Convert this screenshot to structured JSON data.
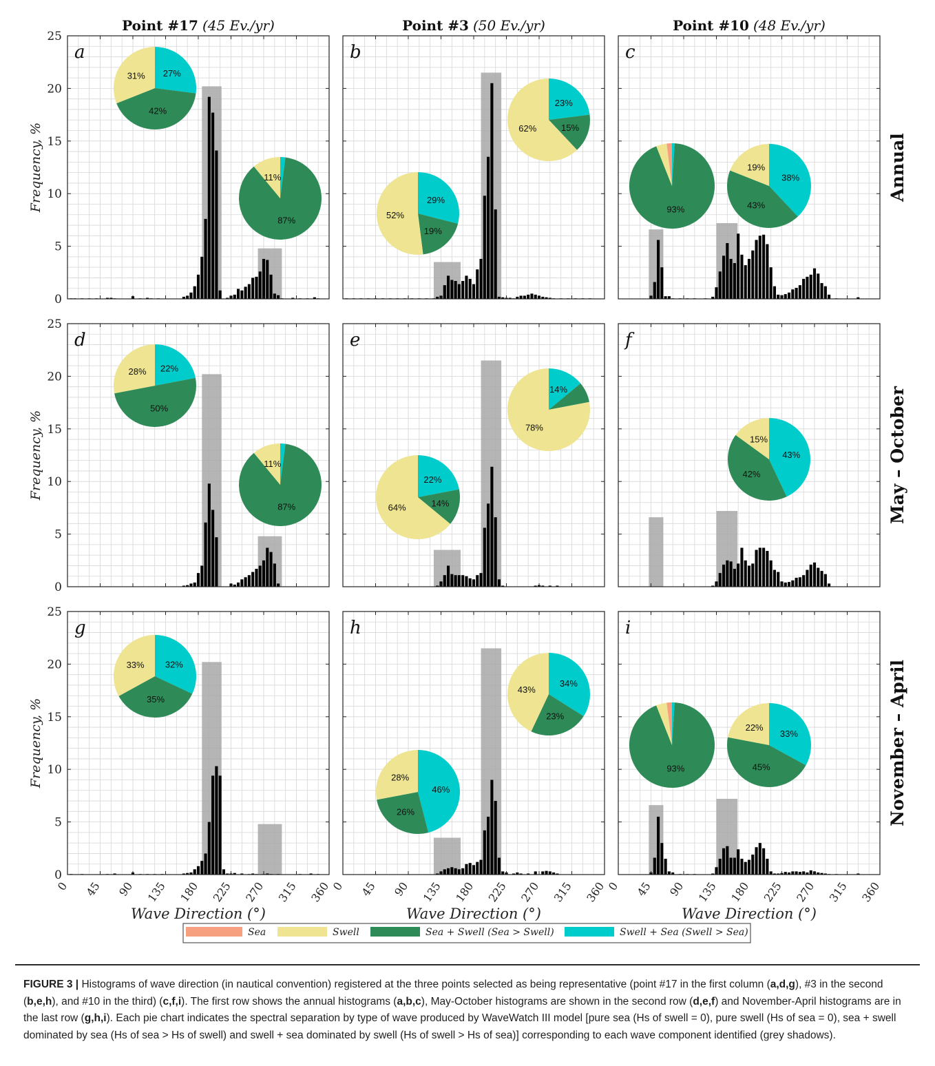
{
  "figure": {
    "column_titles": [
      {
        "point": "Point #17",
        "rate": "(45 Ev./yr)"
      },
      {
        "point": "Point #3",
        "rate": "(50 Ev./yr)"
      },
      {
        "point": "Point #10",
        "rate": "(48 Ev./yr)"
      }
    ],
    "row_titles": [
      "Annual",
      "May – October",
      "November – April"
    ],
    "ylabel": "Frequency, %",
    "xlabel": "Wave Direction (°)",
    "x_ticks": [
      0,
      45,
      90,
      135,
      180,
      225,
      270,
      315,
      360
    ],
    "y_ticks": [
      0,
      5,
      10,
      15,
      20,
      25
    ],
    "legend": [
      {
        "key": "sea",
        "label": "Sea"
      },
      {
        "key": "swell",
        "label": "Swell"
      },
      {
        "key": "sea_swell",
        "label": "Sea + Swell (Sea > Swell)"
      },
      {
        "key": "swell_sea",
        "label": "Swell + Sea (Swell > Sea)"
      }
    ],
    "colors": {
      "sea": "#f6a07f",
      "swell": "#eee492",
      "sea_swell": "#2e8b57",
      "swell_sea": "#00cccc",
      "bar": "#000000",
      "shadow": "#a8a8a8",
      "grid": "#d6d6d6"
    }
  },
  "caption": {
    "label": "FIGURE 3 |",
    "t1": " Histograms of wave direction (in nautical convention) registered at the three points selected as being representative (point #17 in the first column (",
    "b1": "a,d,g",
    "t2": "), #3 in the second (",
    "b2": "b,e,h",
    "t3": "), and #10 in the third) (",
    "b3": "c,f,i",
    "t4": "). The first row shows the annual histograms (",
    "b4": "a,b,c",
    "t5": "), May-October histograms are shown in the second row (",
    "b5": "d,e,f",
    "t6": ") and November-April histograms are in the last row (",
    "b6": "g,h,i",
    "t7": "). Each pie chart indicates the spectral separation by type of wave produced by WaveWatch III model [pure sea (Hs of swell = 0), pure swell (Hs of sea = 0), sea + swell dominated by sea (Hs of sea > Hs of swell) and swell + sea dominated by swell (Hs of swell > Hs of sea)] corresponding to each wave component identified (grey shadows)."
  },
  "chart_data": [
    {
      "panel": "a",
      "type": "bar",
      "xlim": [
        0,
        360
      ],
      "ylim": [
        0,
        25
      ],
      "grid": true,
      "x": [
        5,
        10,
        20,
        30,
        40,
        55,
        60,
        65,
        90,
        100,
        110,
        115,
        125,
        160,
        165,
        170,
        175,
        180,
        185,
        190,
        195,
        200,
        205,
        210,
        220,
        225,
        230,
        235,
        240,
        245,
        250,
        255,
        260,
        265,
        270,
        275,
        280,
        285,
        290,
        295,
        310,
        320,
        330,
        340,
        345
      ],
      "values": [
        0.05,
        0.05,
        0.05,
        0.05,
        0.05,
        0.1,
        0.1,
        0.05,
        0.25,
        0.05,
        0.1,
        0.05,
        0.05,
        0.2,
        0.3,
        0.6,
        1.2,
        2.3,
        4.0,
        7.6,
        19.2,
        17.7,
        14.1,
        0.8,
        0.1,
        0.3,
        0.4,
        0.95,
        0.8,
        1.15,
        1.4,
        2.0,
        2.1,
        2.6,
        3.8,
        3.7,
        2.3,
        0.5,
        0.35,
        0.05,
        0.1,
        0.05,
        0.05,
        0.15,
        0.05
      ],
      "shadows": [
        {
          "from": 185,
          "to": 212,
          "height": 20.2
        },
        {
          "from": 262,
          "to": 295,
          "height": 4.8
        }
      ],
      "pies": [
        {
          "shares": {
            "sea": 0,
            "swell": 31,
            "sea_swell": 42,
            "swell_sea": 27
          },
          "labels": {
            "swell": "31%",
            "sea_swell": "42%",
            "swell_sea": "27%"
          }
        },
        {
          "shares": {
            "sea": 0,
            "swell": 11,
            "sea_swell": 87,
            "swell_sea": 2
          },
          "labels": {
            "swell": "11%",
            "sea_swell": "87%"
          }
        }
      ]
    },
    {
      "panel": "b",
      "type": "bar",
      "xlim": [
        0,
        360
      ],
      "ylim": [
        0,
        25
      ],
      "grid": true,
      "x": [
        5,
        15,
        25,
        35,
        45,
        55,
        65,
        75,
        85,
        95,
        105,
        115,
        125,
        130,
        135,
        140,
        145,
        150,
        155,
        160,
        165,
        170,
        175,
        180,
        185,
        190,
        195,
        200,
        205,
        210,
        215,
        220,
        225,
        230,
        235,
        240,
        245,
        250,
        255,
        260,
        265,
        270,
        275,
        280,
        285,
        290,
        300,
        310,
        320,
        330,
        340
      ],
      "values": [
        0.05,
        0.05,
        0.05,
        0.05,
        0.05,
        0.05,
        0.05,
        0.05,
        0.05,
        0.05,
        0.05,
        0.05,
        0.05,
        0.2,
        0.3,
        1.3,
        2.2,
        1.8,
        1.7,
        1.4,
        1.7,
        2.2,
        1.9,
        1.4,
        2.8,
        3.8,
        9.8,
        13.5,
        20.5,
        8.5,
        0.2,
        0.15,
        0.1,
        0.1,
        0.05,
        0.2,
        0.3,
        0.3,
        0.4,
        0.5,
        0.4,
        0.3,
        0.2,
        0.15,
        0.1,
        0.05,
        0.05,
        0.05,
        0.05,
        0.05,
        0.05
      ],
      "shadows": [
        {
          "from": 125,
          "to": 162,
          "height": 3.5
        },
        {
          "from": 190,
          "to": 218,
          "height": 21.5
        }
      ],
      "pies": [
        {
          "shares": {
            "sea": 0,
            "swell": 52,
            "sea_swell": 19,
            "swell_sea": 29
          },
          "labels": {
            "swell": "52%",
            "sea_swell": "19%",
            "swell_sea": "29%"
          }
        },
        {
          "shares": {
            "sea": 0,
            "swell": 62,
            "sea_swell": 15,
            "swell_sea": 23
          },
          "labels": {
            "swell": "62%",
            "sea_swell": "15%",
            "swell_sea": "23%"
          }
        }
      ]
    },
    {
      "panel": "c",
      "type": "bar",
      "xlim": [
        0,
        360
      ],
      "ylim": [
        0,
        25
      ],
      "grid": true,
      "x": [
        45,
        50,
        55,
        60,
        65,
        70,
        75,
        85,
        95,
        105,
        120,
        130,
        135,
        140,
        145,
        150,
        155,
        160,
        165,
        170,
        175,
        180,
        185,
        190,
        195,
        200,
        205,
        210,
        215,
        220,
        225,
        230,
        235,
        240,
        245,
        250,
        255,
        260,
        265,
        270,
        275,
        280,
        285,
        290,
        300,
        330
      ],
      "values": [
        0.3,
        1.6,
        5.6,
        3.0,
        0.25,
        0.25,
        0.05,
        0.05,
        0.05,
        0.05,
        0.05,
        0.2,
        1.1,
        2.6,
        4.1,
        5.3,
        3.8,
        3.4,
        6.2,
        4.2,
        3.2,
        3.8,
        4.6,
        5.6,
        6.0,
        6.1,
        5.2,
        3.0,
        1.2,
        0.4,
        0.35,
        0.45,
        0.6,
        0.9,
        1.05,
        1.3,
        1.9,
        2.1,
        2.3,
        2.9,
        2.4,
        1.5,
        1.2,
        0.4,
        0.05,
        0.15
      ],
      "shadows": [
        {
          "from": 42,
          "to": 62,
          "height": 6.6
        },
        {
          "from": 135,
          "to": 164,
          "height": 7.2
        }
      ],
      "pies": [
        {
          "shares": {
            "sea": 2,
            "swell": 4,
            "sea_swell": 93,
            "swell_sea": 1
          },
          "labels": {
            "sea_swell": "93%"
          }
        },
        {
          "shares": {
            "sea": 0,
            "swell": 19,
            "sea_swell": 43,
            "swell_sea": 38
          },
          "labels": {
            "swell": "19%",
            "sea_swell": "43%",
            "swell_sea": "38%"
          }
        }
      ]
    },
    {
      "panel": "d",
      "type": "bar",
      "xlim": [
        0,
        360
      ],
      "ylim": [
        0,
        25
      ],
      "grid": true,
      "x": [
        160,
        165,
        170,
        175,
        180,
        185,
        190,
        195,
        200,
        205,
        225,
        230,
        235,
        240,
        245,
        250,
        255,
        260,
        265,
        270,
        275,
        280,
        285,
        290
      ],
      "values": [
        0.1,
        0.15,
        0.3,
        0.4,
        1.3,
        2.0,
        6.1,
        9.8,
        7.3,
        4.7,
        0.3,
        0.2,
        0.4,
        0.7,
        0.9,
        1.1,
        1.4,
        1.7,
        2.0,
        2.5,
        3.7,
        3.3,
        2.2,
        0.3
      ],
      "shadows": [
        {
          "from": 185,
          "to": 212,
          "height": 20.2
        },
        {
          "from": 262,
          "to": 295,
          "height": 4.8
        }
      ],
      "pies": [
        {
          "shares": {
            "sea": 0,
            "swell": 28,
            "sea_swell": 50,
            "swell_sea": 22
          },
          "labels": {
            "swell": "28%",
            "sea_swell": "50%",
            "swell_sea": "22%"
          }
        },
        {
          "shares": {
            "sea": 0,
            "swell": 11,
            "sea_swell": 87,
            "swell_sea": 2
          },
          "labels": {
            "swell": "11%",
            "sea_swell": "87%"
          }
        }
      ]
    },
    {
      "panel": "e",
      "type": "bar",
      "xlim": [
        0,
        360
      ],
      "ylim": [
        0,
        25
      ],
      "grid": true,
      "x": [
        130,
        135,
        140,
        145,
        150,
        155,
        160,
        165,
        170,
        175,
        180,
        185,
        190,
        195,
        200,
        205,
        210,
        215,
        220,
        265,
        270,
        275,
        285,
        295
      ],
      "values": [
        0.1,
        0.5,
        1.1,
        2.0,
        1.2,
        1.1,
        1.1,
        1.1,
        1.0,
        0.8,
        0.7,
        1.1,
        1.3,
        5.6,
        7.9,
        11.4,
        6.6,
        0.7,
        0.1,
        0.1,
        0.15,
        0.1,
        0.1,
        0.1
      ],
      "shadows": [
        {
          "from": 125,
          "to": 162,
          "height": 3.5
        },
        {
          "from": 190,
          "to": 218,
          "height": 21.5
        }
      ],
      "pies": [
        {
          "shares": {
            "sea": 0,
            "swell": 64,
            "sea_swell": 14,
            "swell_sea": 22
          },
          "labels": {
            "swell": "64%",
            "sea_swell": "14%",
            "swell_sea": "22%"
          }
        },
        {
          "shares": {
            "sea": 0,
            "swell": 78,
            "sea_swell": 8,
            "swell_sea": 14
          },
          "labels": {
            "swell": "78%",
            "swell_sea": "14%"
          }
        }
      ]
    },
    {
      "panel": "f",
      "type": "bar",
      "xlim": [
        0,
        360
      ],
      "ylim": [
        0,
        25
      ],
      "grid": true,
      "x": [
        130,
        135,
        140,
        145,
        150,
        155,
        160,
        165,
        170,
        175,
        180,
        185,
        190,
        195,
        200,
        205,
        210,
        215,
        220,
        225,
        230,
        235,
        240,
        245,
        250,
        255,
        260,
        265,
        270,
        275,
        280,
        285,
        290
      ],
      "values": [
        0.1,
        0.5,
        1.3,
        2.1,
        2.5,
        2.4,
        1.7,
        2.2,
        3.7,
        2.5,
        2.0,
        2.2,
        3.5,
        3.7,
        3.7,
        3.4,
        2.5,
        1.6,
        1.4,
        0.5,
        0.4,
        0.45,
        0.6,
        0.85,
        0.9,
        1.1,
        1.6,
        2.1,
        2.3,
        1.8,
        1.5,
        1.2,
        0.3
      ],
      "shadows": [
        {
          "from": 42,
          "to": 62,
          "height": 6.6
        },
        {
          "from": 135,
          "to": 164,
          "height": 7.2
        }
      ],
      "pies": [
        {
          "shares": {
            "sea": 0,
            "swell": 15,
            "sea_swell": 42,
            "swell_sea": 43
          },
          "labels": {
            "swell": "15%",
            "sea_swell": "42%",
            "swell_sea": "43%"
          }
        }
      ]
    },
    {
      "panel": "g",
      "type": "bar",
      "xlim": [
        0,
        360
      ],
      "ylim": [
        0,
        25
      ],
      "grid": true,
      "x": [
        5,
        20,
        55,
        65,
        90,
        100,
        110,
        120,
        130,
        160,
        165,
        170,
        175,
        180,
        185,
        190,
        195,
        200,
        205,
        210,
        215,
        220,
        225,
        230,
        240,
        250,
        255,
        260,
        270,
        275,
        280,
        290,
        320,
        335,
        345
      ],
      "values": [
        0.05,
        0.05,
        0.05,
        0.1,
        0.2,
        0.05,
        0.05,
        0.05,
        0.05,
        0.1,
        0.15,
        0.2,
        0.5,
        0.8,
        1.3,
        2.0,
        5.0,
        9.4,
        10.3,
        9.4,
        0.5,
        0.1,
        0.1,
        0.15,
        0.1,
        0.05,
        0.1,
        0.05,
        0.05,
        0.1,
        0.05,
        0.05,
        0.05,
        0.1,
        0.05
      ],
      "shadows": [
        {
          "from": 185,
          "to": 212,
          "height": 20.2
        },
        {
          "from": 262,
          "to": 295,
          "height": 4.8
        }
      ],
      "pies": [
        {
          "shares": {
            "sea": 0,
            "swell": 33,
            "sea_swell": 35,
            "swell_sea": 32
          },
          "labels": {
            "swell": "33%",
            "sea_swell": "35%",
            "swell_sea": "32%"
          }
        }
      ]
    },
    {
      "panel": "h",
      "type": "bar",
      "xlim": [
        0,
        360
      ],
      "ylim": [
        0,
        25
      ],
      "grid": true,
      "x": [
        130,
        135,
        140,
        145,
        150,
        155,
        160,
        165,
        170,
        175,
        180,
        185,
        190,
        195,
        200,
        205,
        210,
        215,
        220,
        225,
        235,
        240,
        245,
        255,
        265,
        275,
        280,
        285,
        290,
        295
      ],
      "values": [
        0.1,
        0.3,
        0.5,
        0.6,
        0.7,
        0.6,
        0.5,
        0.6,
        1.0,
        1.1,
        0.9,
        1.2,
        1.4,
        4.2,
        5.5,
        9.0,
        7.0,
        1.6,
        0.3,
        0.2,
        0.1,
        0.2,
        0.1,
        0.1,
        0.3,
        0.3,
        0.35,
        0.3,
        0.2,
        0.1
      ],
      "shadows": [
        {
          "from": 125,
          "to": 162,
          "height": 3.5
        },
        {
          "from": 190,
          "to": 218,
          "height": 21.5
        }
      ],
      "pies": [
        {
          "shares": {
            "sea": 0,
            "swell": 28,
            "sea_swell": 26,
            "swell_sea": 46
          },
          "labels": {
            "swell": "28%",
            "sea_swell": "26%",
            "swell_sea": "46%"
          }
        },
        {
          "shares": {
            "sea": 0,
            "swell": 43,
            "sea_swell": 23,
            "swell_sea": 34
          },
          "labels": {
            "swell": "43%",
            "sea_swell": "23%",
            "swell_sea": "34%"
          }
        }
      ]
    },
    {
      "panel": "i",
      "type": "bar",
      "xlim": [
        0,
        360
      ],
      "ylim": [
        0,
        25
      ],
      "grid": true,
      "x": [
        45,
        50,
        55,
        60,
        65,
        70,
        75,
        85,
        95,
        105,
        130,
        135,
        140,
        145,
        150,
        155,
        160,
        165,
        170,
        175,
        180,
        185,
        190,
        195,
        200,
        205,
        210,
        215,
        220,
        225,
        230,
        235,
        240,
        245,
        250,
        255,
        260,
        265,
        270,
        275,
        280,
        285,
        290,
        300,
        330
      ],
      "values": [
        0.2,
        1.6,
        5.5,
        3.0,
        1.5,
        0.3,
        0.2,
        0.05,
        0.05,
        0.05,
        0.1,
        0.7,
        1.5,
        2.5,
        2.7,
        1.6,
        1.6,
        2.4,
        1.5,
        1.2,
        1.4,
        1.9,
        2.6,
        3.0,
        2.5,
        1.5,
        0.3,
        0.1,
        0.1,
        0.15,
        0.25,
        0.2,
        0.3,
        0.3,
        0.25,
        0.3,
        0.2,
        0.4,
        0.3,
        0.2,
        0.15,
        0.1,
        0.05,
        0.05,
        0.1
      ],
      "shadows": [
        {
          "from": 42,
          "to": 62,
          "height": 6.6
        },
        {
          "from": 135,
          "to": 164,
          "height": 7.2
        }
      ],
      "pies": [
        {
          "shares": {
            "sea": 2,
            "swell": 4,
            "sea_swell": 93,
            "swell_sea": 1
          },
          "labels": {
            "sea_swell": "93%"
          }
        },
        {
          "shares": {
            "sea": 0,
            "swell": 22,
            "sea_swell": 45,
            "swell_sea": 33
          },
          "labels": {
            "swell": "22%",
            "sea_swell": "45%",
            "swell_sea": "33%"
          }
        }
      ]
    }
  ]
}
